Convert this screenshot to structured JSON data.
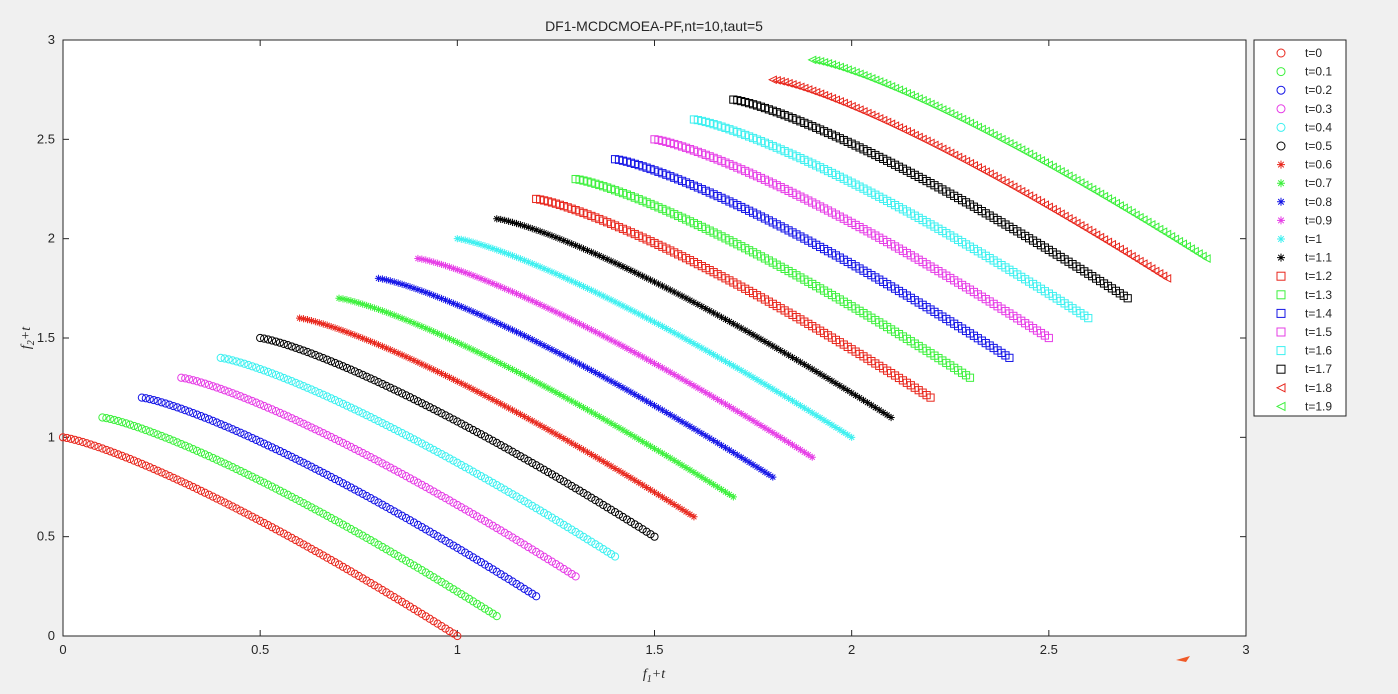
{
  "chart_data": {
    "type": "scatter",
    "title": "DF1-MCDCMOEA-PF,nt=10,taut=5",
    "xlabel": {
      "base": "f",
      "sub": "1",
      "suffix": "+t"
    },
    "ylabel": {
      "base": "f",
      "sub": "2",
      "suffix": "+t"
    },
    "xlim": [
      0,
      3
    ],
    "ylim": [
      0,
      3
    ],
    "xticks": [
      0,
      0.5,
      1,
      1.5,
      2,
      2.5,
      3
    ],
    "yticks": [
      0,
      0.5,
      1,
      1.5,
      2,
      2.5,
      3
    ],
    "xtick_labels": [
      "0",
      "0.5",
      "1",
      "1.5",
      "2",
      "2.5",
      "3"
    ],
    "ytick_labels": [
      "0",
      "0.5",
      "1",
      "1.5",
      "2",
      "2.5",
      "3"
    ],
    "grid": false,
    "legend_position": "outside-right",
    "curve_shape": "f2 = 1 - f1^H(t), f1 in [0,1], both shifted by t",
    "series": [
      {
        "name": "t=0",
        "t": 0.0,
        "H": 1.25,
        "marker": "circle",
        "color": "#e8261c"
      },
      {
        "name": "t=0.1",
        "t": 0.1,
        "H": 1.25,
        "marker": "circle",
        "color": "#3cf03c"
      },
      {
        "name": "t=0.2",
        "t": 0.2,
        "H": 1.25,
        "marker": "circle",
        "color": "#1414e6"
      },
      {
        "name": "t=0.3",
        "t": 0.3,
        "H": 1.25,
        "marker": "circle",
        "color": "#e63ce6"
      },
      {
        "name": "t=0.4",
        "t": 0.4,
        "H": 1.25,
        "marker": "circle",
        "color": "#3cf0f0"
      },
      {
        "name": "t=0.5",
        "t": 0.5,
        "H": 1.25,
        "marker": "circle",
        "color": "#000000"
      },
      {
        "name": "t=0.6",
        "t": 0.6,
        "H": 1.25,
        "marker": "asterisk",
        "color": "#e8261c"
      },
      {
        "name": "t=0.7",
        "t": 0.7,
        "H": 1.25,
        "marker": "asterisk",
        "color": "#3cf03c"
      },
      {
        "name": "t=0.8",
        "t": 0.8,
        "H": 1.25,
        "marker": "asterisk",
        "color": "#1414e6"
      },
      {
        "name": "t=0.9",
        "t": 0.9,
        "H": 1.25,
        "marker": "asterisk",
        "color": "#e63ce6"
      },
      {
        "name": "t=1",
        "t": 1.0,
        "H": 1.25,
        "marker": "asterisk",
        "color": "#3cf0f0"
      },
      {
        "name": "t=1.1",
        "t": 1.1,
        "H": 1.25,
        "marker": "asterisk",
        "color": "#000000"
      },
      {
        "name": "t=1.2",
        "t": 1.2,
        "H": 1.25,
        "marker": "square",
        "color": "#e8261c"
      },
      {
        "name": "t=1.3",
        "t": 1.3,
        "H": 1.25,
        "marker": "square",
        "color": "#3cf03c"
      },
      {
        "name": "t=1.4",
        "t": 1.4,
        "H": 1.25,
        "marker": "square",
        "color": "#1414e6"
      },
      {
        "name": "t=1.5",
        "t": 1.5,
        "H": 1.25,
        "marker": "square",
        "color": "#e63ce6"
      },
      {
        "name": "t=1.6",
        "t": 1.6,
        "H": 1.25,
        "marker": "square",
        "color": "#3cf0f0"
      },
      {
        "name": "t=1.7",
        "t": 1.7,
        "H": 1.25,
        "marker": "square",
        "color": "#000000"
      },
      {
        "name": "t=1.8",
        "t": 1.8,
        "H": 1.25,
        "marker": "triangle-left",
        "color": "#e8261c"
      },
      {
        "name": "t=1.9",
        "t": 1.9,
        "H": 1.25,
        "marker": "triangle-left",
        "color": "#3cf03c"
      }
    ]
  }
}
